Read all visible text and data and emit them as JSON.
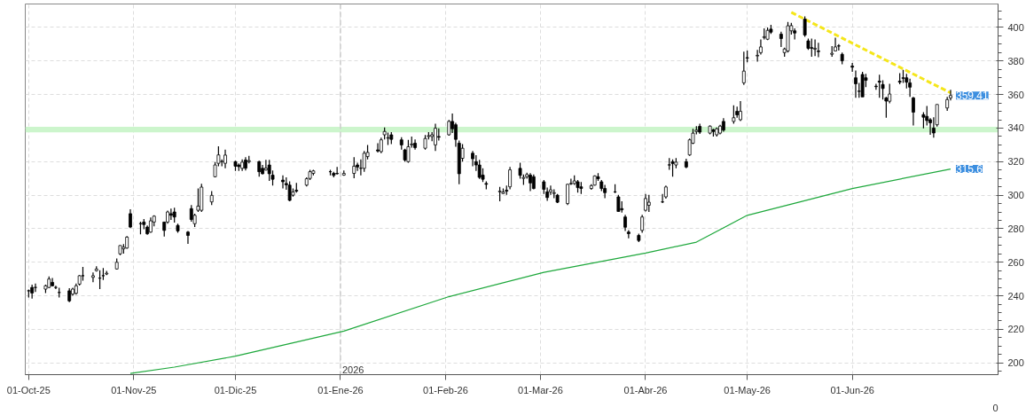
{
  "chart_data": {
    "type": "candlestick",
    "x": [
      "2025-10-01",
      "2025-10-02",
      "2025-10-03",
      "2025-10-06",
      "2025-10-07",
      "2025-10-08",
      "2025-10-09",
      "2025-10-10",
      "2025-10-13",
      "2025-10-14",
      "2025-10-15",
      "2025-10-16",
      "2025-10-17",
      "2025-10-20",
      "2025-10-21",
      "2025-10-22",
      "2025-10-23",
      "2025-10-24",
      "2025-10-27",
      "2025-10-28",
      "2025-10-29",
      "2025-10-30",
      "2025-10-31",
      "2025-11-03",
      "2025-11-04",
      "2025-11-05",
      "2025-11-06",
      "2025-11-07",
      "2025-11-10",
      "2025-11-11",
      "2025-11-12",
      "2025-11-13",
      "2025-11-14",
      "2025-11-17",
      "2025-11-18",
      "2025-11-19",
      "2025-11-20",
      "2025-11-21",
      "2025-11-24",
      "2025-11-25",
      "2025-11-26",
      "2025-11-27",
      "2025-11-28",
      "2025-12-01",
      "2025-12-02",
      "2025-12-03",
      "2025-12-04",
      "2025-12-05",
      "2025-12-08",
      "2025-12-09",
      "2025-12-10",
      "2025-12-11",
      "2025-12-12",
      "2025-12-15",
      "2025-12-16",
      "2025-12-17",
      "2025-12-18",
      "2025-12-19",
      "2025-12-22",
      "2025-12-23",
      "2025-12-24",
      "2025-12-29",
      "2025-12-30",
      "2025-12-31",
      "2026-01-02",
      "2026-01-05",
      "2026-01-06",
      "2026-01-07",
      "2026-01-08",
      "2026-01-09",
      "2026-01-12",
      "2026-01-13",
      "2026-01-14",
      "2026-01-15",
      "2026-01-16",
      "2026-01-19",
      "2026-01-20",
      "2026-01-21",
      "2026-01-22",
      "2026-01-23",
      "2026-01-26",
      "2026-01-27",
      "2026-01-28",
      "2026-01-29",
      "2026-01-30",
      "2026-02-02",
      "2026-02-03",
      "2026-02-04",
      "2026-02-05",
      "2026-02-06",
      "2026-02-09",
      "2026-02-10",
      "2026-02-11",
      "2026-02-12",
      "2026-02-13",
      "2026-02-17",
      "2026-02-18",
      "2026-02-19",
      "2026-02-20",
      "2026-02-23",
      "2026-02-24",
      "2026-02-25",
      "2026-02-26",
      "2026-02-27",
      "2026-03-02",
      "2026-03-03",
      "2026-03-04",
      "2026-03-05",
      "2026-03-06",
      "2026-03-09",
      "2026-03-10",
      "2026-03-11",
      "2026-03-12",
      "2026-03-13",
      "2026-03-16",
      "2026-03-17",
      "2026-03-18",
      "2026-03-19",
      "2026-03-20",
      "2026-03-23",
      "2026-03-24",
      "2026-03-25",
      "2026-03-26",
      "2026-03-27",
      "2026-03-30",
      "2026-03-31",
      "2026-04-01",
      "2026-04-02",
      "2026-04-06",
      "2026-04-07",
      "2026-04-08",
      "2026-04-09",
      "2026-04-10",
      "2026-04-13",
      "2026-04-14",
      "2026-04-15",
      "2026-04-16",
      "2026-04-17",
      "2026-04-20",
      "2026-04-21",
      "2026-04-22",
      "2026-04-23",
      "2026-04-24",
      "2026-04-27",
      "2026-04-28",
      "2026-04-29",
      "2026-04-30",
      "2026-05-01",
      "2026-05-04",
      "2026-05-05",
      "2026-05-06",
      "2026-05-07",
      "2026-05-08",
      "2026-05-11",
      "2026-05-12",
      "2026-05-13",
      "2026-05-14",
      "2026-05-15",
      "2026-05-18",
      "2026-05-19",
      "2026-05-20",
      "2026-05-21",
      "2026-05-22",
      "2026-05-26",
      "2026-05-27",
      "2026-05-28",
      "2026-05-29",
      "2026-06-01",
      "2026-06-02",
      "2026-06-03",
      "2026-06-04",
      "2026-06-05",
      "2026-06-08",
      "2026-06-09",
      "2026-06-10",
      "2026-06-11",
      "2026-06-12",
      "2026-06-15",
      "2026-06-16",
      "2026-06-17",
      "2026-06-18",
      "2026-06-19",
      "2026-06-22",
      "2026-06-23",
      "2026-06-24",
      "2026-06-25",
      "2026-06-26",
      "2026-06-29",
      "2026-06-30"
    ],
    "ohlc": [
      [
        243,
        243.7,
        239,
        243
      ],
      [
        245,
        246.6,
        238.4,
        241.7
      ],
      [
        245,
        247.3,
        242.3,
        245
      ],
      [
        244,
        246.6,
        241.7,
        246
      ],
      [
        245,
        251.6,
        244.5,
        250
      ],
      [
        248,
        250.6,
        245.6,
        246
      ],
      [
        245,
        246,
        244,
        245
      ],
      [
        242,
        244.8,
        239,
        242
      ],
      [
        243,
        244.5,
        236.2,
        237
      ],
      [
        241,
        244.8,
        240,
        244
      ],
      [
        241.5,
        247.3,
        240.7,
        246
      ],
      [
        247,
        252.4,
        246.1,
        252
      ],
      [
        252,
        257.2,
        249,
        252
      ],
      [
        251,
        253.9,
        248.1,
        252
      ],
      [
        255,
        257.6,
        254.4,
        256
      ],
      [
        250.5,
        255.2,
        244,
        250.6
      ],
      [
        252,
        256.6,
        249.5,
        252
      ],
      [
        253,
        254.9,
        252.3,
        253.5
      ],
      [
        256,
        262.2,
        255.6,
        260
      ],
      [
        265,
        270.1,
        264.3,
        270
      ],
      [
        268,
        270.9,
        265.2,
        269
      ],
      [
        268.5,
        275.6,
        268.1,
        275
      ],
      [
        289,
        291.6,
        280.4,
        281
      ],
      [
        283,
        284.2,
        276.7,
        283
      ],
      [
        284,
        285.8,
        279.7,
        282.5
      ],
      [
        281,
        282,
        276.4,
        277
      ],
      [
        278,
        286.7,
        277.6,
        284.7
      ],
      [
        284,
        288,
        281.4,
        287.5
      ],
      [
        284,
        284.2,
        275.4,
        279
      ],
      [
        284,
        290.8,
        283,
        290
      ],
      [
        289,
        292,
        285.3,
        288
      ],
      [
        290,
        292.5,
        283.7,
        287
      ],
      [
        282,
        283,
        277.6,
        278.7
      ],
      [
        278,
        278.7,
        271,
        276
      ],
      [
        292,
        294.1,
        284.2,
        285.5
      ],
      [
        283,
        289,
        281,
        288
      ],
      [
        291,
        304,
        290,
        293.5
      ],
      [
        291,
        306.8,
        290,
        304.8
      ],
      [
        296,
        302.4,
        294.1,
        299.9
      ],
      [
        311,
        319.7,
        310.6,
        318
      ],
      [
        319,
        329.2,
        317.3,
        324
      ],
      [
        320,
        321.4,
        317.3,
        320.2
      ],
      [
        319,
        327.2,
        316.1,
        323.9
      ],
      [
        320,
        320.6,
        314.5,
        317.3
      ],
      [
        318,
        318.9,
        314.5,
        317
      ],
      [
        316,
        321.4,
        314.5,
        319.7
      ],
      [
        321,
        322.7,
        314.8,
        316.1
      ],
      [
        320,
        323.4,
        318.9,
        320.6
      ],
      [
        320,
        320.6,
        311.1,
        314
      ],
      [
        316,
        318.1,
        312.3,
        312.8
      ],
      [
        315,
        321.1,
        314.8,
        316.1
      ],
      [
        318,
        321.1,
        308.5,
        312.8
      ],
      [
        312,
        314.8,
        305.7,
        309.5
      ],
      [
        309,
        311.8,
        304,
        308
      ],
      [
        307,
        310.6,
        303.2,
        306.2
      ],
      [
        306,
        308.2,
        296.3,
        296.9
      ],
      [
        300,
        304,
        299.1,
        301.9
      ],
      [
        303,
        307.3,
        301.5,
        302.4
      ],
      [
        306,
        310.6,
        305.2,
        309.8
      ],
      [
        310,
        315.1,
        309,
        314
      ],
      [
        313,
        315.1,
        311.8,
        314.5
      ],
      [
        314,
        315.1,
        311.8,
        314
      ],
      [
        313,
        314,
        310.6,
        311.8
      ],
      [
        313,
        316.8,
        312.3,
        312.8
      ],
      [
        312,
        314.8,
        311.5,
        313
      ],
      [
        313,
        322.7,
        310.1,
        317.3
      ],
      [
        318,
        319.4,
        314.5,
        316.8
      ],
      [
        316,
        321.4,
        311.8,
        316.1
      ],
      [
        316,
        326.4,
        314,
        325
      ],
      [
        323,
        330,
        321.4,
        325.5
      ],
      [
        327,
        331,
        325.5,
        326.4
      ],
      [
        326,
        334.3,
        325,
        333
      ],
      [
        336,
        340.4,
        333.3,
        338
      ],
      [
        334,
        337.3,
        330,
        334.3
      ],
      [
        336,
        337.6,
        330.5,
        333.3
      ],
      [
        333,
        334.6,
        327.2,
        330
      ],
      [
        327,
        327.7,
        320,
        321
      ],
      [
        320,
        333,
        319.4,
        328.9
      ],
      [
        330,
        334.9,
        328.4,
        330.5
      ],
      [
        331,
        333.3,
        327.2,
        328.4
      ],
      [
        328,
        335.9,
        327.2,
        333.8
      ],
      [
        335,
        337.6,
        333.3,
        335.5
      ],
      [
        335,
        337.6,
        332.2,
        336
      ],
      [
        330,
        342.6,
        326.4,
        339.9
      ],
      [
        335,
        339.9,
        332.6,
        334.6
      ],
      [
        336,
        344.9,
        335.5,
        344
      ],
      [
        344,
        348.7,
        337.1,
        339.6
      ],
      [
        342,
        343.2,
        328.9,
        333.3
      ],
      [
        331,
        332.6,
        306.5,
        312.8
      ],
      [
        322,
        330.5,
        320,
        328
      ],
      [
        325,
        326.4,
        317.3,
        321.7
      ],
      [
        320,
        323.9,
        314.5,
        318
      ],
      [
        318,
        321.1,
        309.7,
        310.6
      ],
      [
        312,
        316.1,
        307.8,
        309.5
      ],
      [
        307,
        308.2,
        303.5,
        306.5
      ],
      [
        302,
        304.9,
        296.3,
        302.4
      ],
      [
        301,
        304,
        300.7,
        301.9
      ],
      [
        303,
        305.7,
        300.2,
        302.4
      ],
      [
        305,
        316.8,
        303.5,
        315.1
      ],
      [
        316,
        319.4,
        309.8,
        311.8
      ],
      [
        310,
        312.3,
        306.2,
        310.6
      ],
      [
        311,
        313.4,
        309.8,
        312.3
      ],
      [
        312,
        313.1,
        302.4,
        307.3
      ],
      [
        311,
        312.3,
        303.5,
        304
      ],
      [
        308,
        309,
        300.7,
        303.5
      ],
      [
        302,
        304.5,
        296.6,
        298.6
      ],
      [
        302,
        305.7,
        300.2,
        303.2
      ],
      [
        301,
        303.5,
        298.2,
        301.5
      ],
      [
        300,
        300.7,
        295.3,
        295.8
      ],
      [
        295,
        306.8,
        294.1,
        306.5
      ],
      [
        307,
        309.8,
        306.2,
        306.8
      ],
      [
        307,
        311.8,
        306.2,
        308.5
      ],
      [
        308,
        309,
        301.5,
        304.5
      ],
      [
        305,
        307.8,
        300.7,
        304
      ],
      [
        304,
        306.5,
        303.2,
        305.7
      ],
      [
        306,
        311.8,
        305.7,
        311.5
      ],
      [
        311,
        313.1,
        308.5,
        309.8
      ],
      [
        308,
        309,
        302.4,
        304
      ],
      [
        304,
        306.2,
        298.2,
        301.5
      ],
      [
        302,
        306.5,
        301.2,
        301.9
      ],
      [
        299,
        300.2,
        290.3,
        290.3
      ],
      [
        292,
        296.3,
        289.6,
        291.3
      ],
      [
        287,
        288.3,
        278.7,
        280.9
      ],
      [
        278,
        279.2,
        274.3,
        277.1
      ],
      [
        276,
        277.1,
        272.1,
        273
      ],
      [
        279,
        288.3,
        277.6,
        287
      ],
      [
        291,
        300.7,
        290.3,
        298
      ],
      [
        294,
        300.2,
        290,
        295.8
      ],
      [
        296,
        300.7,
        295.3,
        296
      ],
      [
        299,
        305.7,
        297.9,
        304.9
      ],
      [
        318,
        322.2,
        315.1,
        318.1
      ],
      [
        320,
        321.4,
        311.1,
        318.9
      ],
      [
        318,
        322.2,
        316.1,
        319.7
      ],
      [
        320,
        321.7,
        316.1,
        316.8
      ],
      [
        324,
        333.8,
        323.4,
        333
      ],
      [
        331,
        339.6,
        330.5,
        337
      ],
      [
        338,
        341.2,
        336.3,
        338.8
      ],
      [
        341,
        342.6,
        336.6,
        337.6
      ],
      [
        337,
        341.6,
        336.3,
        341.2
      ],
      [
        339,
        339.6,
        335,
        338
      ],
      [
        336,
        340.4,
        335,
        339.6
      ],
      [
        337,
        342,
        336.3,
        341.2
      ],
      [
        344,
        345.9,
        337.9,
        338.8
      ],
      [
        344,
        353.6,
        342.6,
        346.2
      ],
      [
        350,
        352.8,
        346.2,
        347.9
      ],
      [
        345,
        356.1,
        344.2,
        350
      ],
      [
        367,
        385.6,
        365.7,
        374
      ],
      [
        382,
        386.2,
        379.3,
        381.8
      ],
      [
        383,
        386.7,
        379.6,
        383.4
      ],
      [
        385,
        392.9,
        383.9,
        388.4
      ],
      [
        394,
        399.5,
        392.9,
        394.5
      ],
      [
        393,
        400,
        392.5,
        398.3
      ],
      [
        399,
        401.6,
        396.2,
        397.2
      ],
      [
        396,
        397.5,
        388.4,
        393.4
      ],
      [
        385,
        387.9,
        382.6,
        387.2
      ],
      [
        386,
        403.3,
        385.1,
        401
      ],
      [
        398,
        402.8,
        395.8,
        401.1
      ],
      [
        398,
        399.5,
        392.9,
        396.7
      ],
      [
        405,
        406.6,
        394.5,
        395.5
      ],
      [
        392,
        393.4,
        386.7,
        387.6
      ],
      [
        388,
        393.4,
        382.6,
        387.6
      ],
      [
        387,
        392.9,
        383,
        387.6
      ],
      [
        386,
        390.9,
        382.3,
        385.6
      ],
      [
        384,
        388.9,
        382.6,
        384.6
      ],
      [
        386,
        393.9,
        385.9,
        388.4
      ],
      [
        389,
        390.1,
        386.2,
        388.9
      ],
      [
        384,
        385.1,
        378,
        380.1
      ],
      [
        377,
        378.9,
        373.5,
        376.3
      ],
      [
        370,
        374.3,
        358.1,
        366.4
      ],
      [
        362,
        366.9,
        358.1,
        361.9
      ],
      [
        372,
        373.5,
        358.6,
        358.6
      ],
      [
        370,
        372.3,
        364.4,
        368.5
      ],
      [
        365,
        366.4,
        362.8,
        364.7
      ],
      [
        368,
        371.8,
        358.1,
        367.4
      ],
      [
        366,
        368.5,
        357,
        363.6
      ],
      [
        358,
        358.6,
        346.2,
        356.1
      ],
      [
        356,
        366.4,
        354.8,
        360.3
      ],
      [
        368,
        372.7,
        366.1,
        367.4
      ],
      [
        370,
        374.8,
        366.9,
        369.7
      ],
      [
        370,
        372.3,
        363.6,
        367.4
      ],
      [
        367,
        369.4,
        358.6,
        364.4
      ],
      [
        358,
        358.6,
        341.6,
        349.5
      ],
      [
        348,
        349.5,
        339.9,
        346.5
      ],
      [
        347,
        353.2,
        341.6,
        344.5
      ],
      [
        345,
        345.9,
        336,
        343.2
      ],
      [
        340,
        346.5,
        334.3,
        337.1
      ],
      [
        342,
        354.1,
        340.9,
        354.1
      ],
      [
        352,
        358.6,
        350.3,
        357
      ],
      [
        358,
        362.8,
        356.5,
        359.41
      ]
    ],
    "series": [
      {
        "type": "line",
        "color": "#1ea83c",
        "x": [
          "2025-10-31",
          "2025-11-13",
          "2025-12-01",
          "2026-01-02",
          "2026-02-02",
          "2026-03-02",
          "2026-04-01",
          "2026-04-16",
          "2026-05-01",
          "2026-06-01",
          "2026-06-30"
        ],
        "values": [
          193.7,
          197.5,
          204,
          219,
          239.5,
          254,
          265.5,
          272,
          288,
          304,
          315.6
        ]
      },
      {
        "type": "line",
        "color": "#f5e61a",
        "line_style": "dashed",
        "x": [
          "2026-05-14",
          "2026-06-30"
        ],
        "values": [
          409,
          361
        ]
      }
    ],
    "bands": [
      {
        "axis": "y",
        "from": 337.5,
        "to": 340.8,
        "color": "#ccf5cc"
      }
    ],
    "ref_lines": [
      {
        "axis": "x",
        "value": "2026-01-01",
        "label": "2026",
        "color": "#cccccc",
        "line_style": "dashed"
      }
    ],
    "annotations": [
      {
        "text": "359,41",
        "x": "2026-06-30",
        "y": 359.41
      },
      {
        "text": "315,6",
        "x": "2026-06-30",
        "y": 315.6
      },
      "0"
    ],
    "xlim": [
      "2025-09-30",
      "2026-07-14"
    ],
    "ylim": [
      193,
      414
    ],
    "yticks": [
      200,
      220,
      240,
      260,
      280,
      300,
      320,
      340,
      360,
      380,
      400
    ],
    "xticks": [
      {
        "value": "2025-10-01",
        "label": "01-Oct-25"
      },
      {
        "value": "2025-11-01",
        "label": "01-Nov-25"
      },
      {
        "value": "2025-12-01",
        "label": "01-Dic-25"
      },
      {
        "value": "2026-01-01",
        "label": "01-Ene-26"
      },
      {
        "value": "2026-02-01",
        "label": "01-Feb-26"
      },
      {
        "value": "2026-03-01",
        "label": "01-Mar-26"
      },
      {
        "value": "2026-04-01",
        "label": "01-Abr-26"
      },
      {
        "value": "2026-05-01",
        "label": "01-May-26"
      },
      {
        "value": "2026-06-01",
        "label": "01-Jun-26"
      }
    ],
    "grid": true
  }
}
